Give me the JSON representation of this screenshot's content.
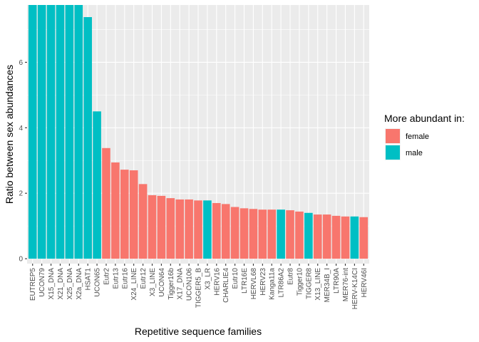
{
  "chart_data": {
    "type": "bar",
    "xlabel": "Repetitive sequence families",
    "ylabel": "Ratio between sex abundances",
    "ylim": [
      -0.15,
      7.75
    ],
    "yticks": [
      0,
      2,
      4,
      6
    ],
    "legend": {
      "title": "More abundant in:",
      "position": "right",
      "entries": [
        {
          "key": "female",
          "label": "female",
          "color": "#F8766D"
        },
        {
          "key": "male",
          "label": "male",
          "color": "#00BFC4"
        }
      ]
    },
    "categories": [
      "EUTREP5",
      "UCON79",
      "X15_DNA",
      "X21_DNA",
      "X25_DNA",
      "X2a_DNA",
      "HSAT1",
      "UCON65",
      "Eutr2",
      "Eutr13",
      "Eutr16",
      "X24_LINE",
      "Eutr12",
      "X3_LINE",
      "UCON64",
      "Tigger16b",
      "X17_DNA",
      "UCON106",
      "TIGGER5_B",
      "X3_LR",
      "HERV16",
      "CHARLIE4",
      "Eutr10",
      "LTR16E",
      "HERVL68",
      "HERV23",
      "Kanga11a",
      "LTR86A2",
      "Eutr8",
      "Tigger10",
      "TIGGER8",
      "X13_LINE",
      "MER34B_I",
      "LTR90A",
      "MER76-int",
      "HERV-K14CI",
      "HERV46I"
    ],
    "values": [
      7.75,
      7.75,
      7.75,
      7.75,
      7.75,
      7.75,
      7.38,
      4.5,
      3.38,
      2.94,
      2.72,
      2.7,
      2.28,
      1.94,
      1.92,
      1.85,
      1.81,
      1.81,
      1.78,
      1.78,
      1.7,
      1.67,
      1.58,
      1.54,
      1.52,
      1.5,
      1.5,
      1.5,
      1.48,
      1.44,
      1.4,
      1.35,
      1.35,
      1.31,
      1.29,
      1.29,
      1.27
    ],
    "groups": [
      "male",
      "male",
      "male",
      "male",
      "male",
      "male",
      "male",
      "male",
      "female",
      "female",
      "female",
      "female",
      "female",
      "female",
      "female",
      "female",
      "female",
      "female",
      "female",
      "male",
      "female",
      "female",
      "female",
      "female",
      "female",
      "female",
      "female",
      "male",
      "female",
      "female",
      "male",
      "female",
      "female",
      "female",
      "female",
      "male",
      "female"
    ]
  }
}
